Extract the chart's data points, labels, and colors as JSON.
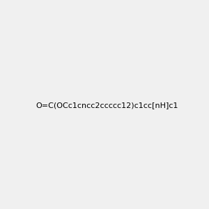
{
  "smiles": "O=C(OCc1cncc2ccccc12)c1cc[nH]c1",
  "image_size": 300,
  "background_color": "#f0f0f0",
  "title": ""
}
